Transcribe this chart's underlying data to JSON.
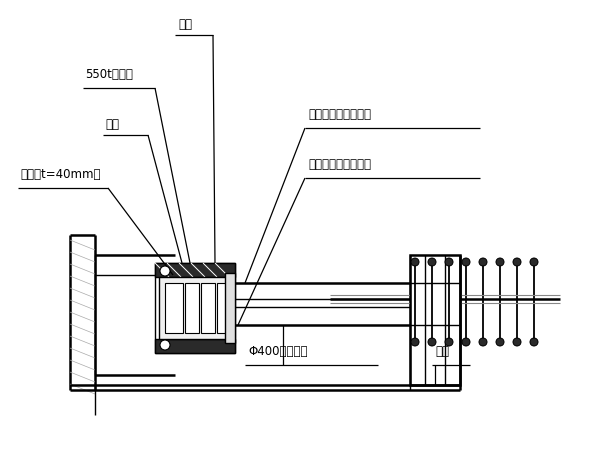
{
  "bg": "#ffffff",
  "lc": "#000000",
  "dark": "#2a2a2a",
  "gray": "#888888",
  "lgray": "#cccccc",
  "labels": {
    "zuojiao": "撇脚",
    "qianjinding": "550t千斤顶",
    "dianban": "垫板",
    "gangban": "钐板（t=40mm）",
    "bianjingtou": "斜拉索施工用变径头",
    "kaiheban": "斜拉索施工用开合板",
    "wufeng": "Φ400无缝钐管",
    "niutui": "牛腿"
  },
  "figsize": [
    6.0,
    4.5
  ],
  "dpi": 100
}
